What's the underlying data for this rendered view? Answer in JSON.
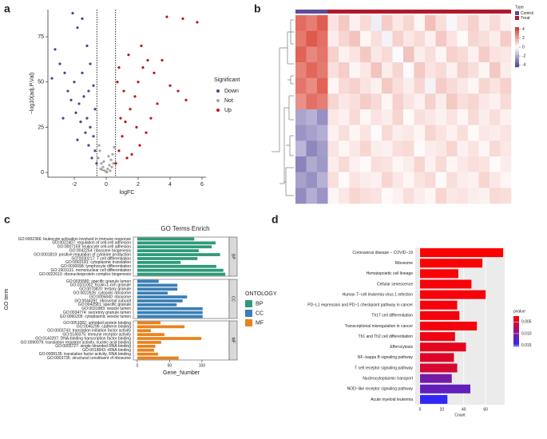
{
  "chart_data": [
    {
      "type": "scatter",
      "panel": "a",
      "xlabel": "logFC",
      "ylabel": "−log10(adj.P.Val)",
      "xlim": [
        -3.65,
        6.25
      ],
      "ylim": [
        -2.6,
        90
      ],
      "xticks": [
        -2,
        0,
        2,
        4,
        6
      ],
      "yticks": [
        0,
        25,
        50,
        75
      ],
      "vlines": [
        -0.585,
        0.585
      ],
      "legend_title": "Significant",
      "series": [
        {
          "name": "Down",
          "color": "#54408c",
          "x": [
            -3.2,
            -2.9,
            -2.6,
            -2.1,
            -1.8,
            -1.5,
            -2.4,
            -2.0,
            -1.7,
            -1.4,
            -1.2,
            -1.0,
            -0.8,
            -0.7,
            -0.9,
            -1.1,
            -1.3,
            -1.6,
            -1.9,
            -2.2,
            -0.6,
            -1.0,
            -1.2,
            -0.8,
            -1.5,
            -2.7,
            -3.4,
            -0.7,
            -1.8,
            -1.1
          ],
          "y": [
            68,
            60,
            55,
            88,
            80,
            85,
            45,
            50,
            38,
            42,
            30,
            25,
            20,
            12,
            8,
            15,
            22,
            28,
            33,
            40,
            5,
            60,
            70,
            48,
            55,
            30,
            52,
            35,
            18,
            45
          ]
        },
        {
          "name": "Not",
          "color": "#a6a6a6",
          "x": [
            -0.5,
            -0.4,
            -0.3,
            -0.2,
            -0.1,
            0,
            0.1,
            0.2,
            0.3,
            0.4,
            0.5,
            -0.45,
            0.05,
            -0.25,
            0.35,
            -0.15,
            0.15,
            0.45,
            -0.35,
            0.25
          ],
          "y": [
            8,
            12,
            5,
            3,
            1,
            0.5,
            2,
            4,
            7,
            10,
            14,
            15,
            0.2,
            1.5,
            3,
            6,
            9,
            5,
            2,
            1
          ]
        },
        {
          "name": "Up",
          "color": "#c0141a",
          "x": [
            0.6,
            0.8,
            1.0,
            1.2,
            1.5,
            1.8,
            2.0,
            2.3,
            2.6,
            3.0,
            3.5,
            4.0,
            4.5,
            5.0,
            3.8,
            4.8,
            5.7,
            3.2,
            2.8,
            2.5,
            2.1,
            1.6,
            1.3,
            0.9,
            1.1,
            0.7,
            1.4,
            2.2,
            0.8,
            1.9
          ],
          "y": [
            5,
            12,
            20,
            28,
            35,
            42,
            50,
            58,
            62,
            55,
            62,
            48,
            45,
            40,
            86,
            85,
            83,
            38,
            30,
            22,
            15,
            10,
            8,
            30,
            45,
            50,
            65,
            70,
            58,
            25
          ]
        }
      ]
    },
    {
      "type": "heatmap",
      "panel": "b",
      "legend_title": "Type",
      "groups": [
        {
          "name": "Control",
          "color": "#5e4b9c",
          "count": 3
        },
        {
          "name": "Treat",
          "color": "#b2182b",
          "count": 17
        }
      ],
      "zlim": [
        -4.5,
        4.5
      ],
      "zticks": [
        4,
        2,
        0,
        -2,
        -4
      ],
      "low_color": "#4b3f96",
      "mid_color": "#ffffff",
      "high_color": "#d7301f",
      "matrix": [
        [
          3.2,
          2.8,
          3.5,
          0.6,
          1.2,
          0.3,
          0.8,
          -0.4,
          1.1,
          0.5,
          0.9,
          0.2,
          1.4,
          0.7,
          -0.2,
          0.6,
          1.0,
          0.4,
          0.8,
          0.3
        ],
        [
          2.9,
          3.6,
          3.1,
          0.4,
          0.9,
          1.3,
          0.2,
          0.7,
          -0.3,
          1.0,
          0.5,
          0.8,
          0.3,
          1.2,
          0.6,
          0.1,
          0.9,
          0.7,
          0.4,
          1.1
        ],
        [
          3.4,
          2.6,
          3.0,
          1.0,
          0.3,
          0.6,
          1.2,
          0.5,
          0.8,
          -0.1,
          1.3,
          0.4,
          0.7,
          0.2,
          1.0,
          0.8,
          0.3,
          1.1,
          0.6,
          0.5
        ],
        [
          2.7,
          3.3,
          2.9,
          0.7,
          1.1,
          0.2,
          0.5,
          1.3,
          0.4,
          0.9,
          0.1,
          1.2,
          0.6,
          0.8,
          0.3,
          1.0,
          0.7,
          0.2,
          1.2,
          0.4
        ],
        [
          3.0,
          2.5,
          3.4,
          0.2,
          0.8,
          1.0,
          0.6,
          0.3,
          1.2,
          0.7,
          0.4,
          0.9,
          -0.3,
          1.1,
          0.8,
          0.5,
          0.2,
          0.9,
          0.6,
          1.0
        ],
        [
          2.4,
          3.1,
          2.8,
          0.9,
          0.5,
          0.7,
          1.1,
          0.8,
          0.2,
          1.0,
          0.6,
          0.3,
          1.0,
          0.4,
          1.2,
          0.7,
          0.9,
          0.5,
          0.3,
          0.8
        ],
        [
          -2.1,
          -1.8,
          -2.6,
          0.5,
          0.3,
          0.8,
          0.2,
          0.6,
          0.4,
          0.9,
          0.1,
          0.7,
          0.5,
          0.3,
          0.6,
          0.2,
          0.8,
          0.4,
          0.7,
          0.3
        ],
        [
          -2.5,
          -2.2,
          -1.9,
          0.3,
          0.7,
          0.2,
          0.6,
          0.1,
          0.8,
          0.4,
          0.5,
          0.2,
          0.9,
          0.6,
          0.3,
          0.7,
          0.1,
          0.5,
          0.4,
          0.6
        ],
        [
          -1.7,
          -2.8,
          -2.3,
          0.6,
          0.2,
          0.5,
          0.9,
          0.4,
          0.3,
          0.7,
          0.8,
          0.1,
          0.4,
          0.5,
          0.9,
          0.3,
          0.6,
          0.2,
          0.8,
          0.5
        ],
        [
          -2.9,
          -2.0,
          -2.4,
          0.4,
          0.8,
          0.3,
          0.1,
          0.7,
          0.6,
          0.2,
          0.4,
          0.9,
          0.3,
          0.8,
          0.2,
          0.5,
          0.7,
          0.6,
          0.1,
          0.4
        ],
        [
          -2.2,
          -2.6,
          -1.8,
          0.7,
          0.1,
          0.6,
          0.4,
          0.3,
          0.9,
          0.5,
          0.2,
          0.6,
          0.8,
          0.1,
          0.7,
          0.4,
          0.3,
          0.9,
          0.5,
          0.2
        ],
        [
          -2.7,
          -1.9,
          -2.5,
          0.2,
          0.5,
          0.9,
          0.7,
          0.6,
          0.1,
          0.3,
          0.7,
          0.4,
          0.2,
          0.9,
          0.5,
          0.6,
          0.4,
          0.3,
          0.8,
          0.7
        ]
      ]
    },
    {
      "type": "facet_bar",
      "panel": "c",
      "title": "GO Terms Enrich",
      "xlabel": "Gene_Number",
      "ylabel": "GO term",
      "legend_title": "ONTOLOGY",
      "xlim": [
        -6,
        142
      ],
      "xticks": [
        0,
        50,
        100
      ],
      "facets": [
        {
          "name": "BP",
          "color": "#2e9a7a",
          "categories": [
            "GO:0002366: leukocyte activation involved in immune response",
            "GO:0022407: regulation of cell-cell adhesion",
            "GO:0007159: leukocyte cell-cell adhesion",
            "GO:0042254: ribosome biogenesis",
            "GO:0001819: positive regulation of cytokine production",
            "GO:0030217: T cell differentiation",
            "GO:0002181: cytoplasmic translation",
            "GO:0030098: lymphocyte differentiation",
            "GO:1903131: mononuclear cell differentiation",
            "GO:0022613: ribonucleoprotein complex biogenesis"
          ],
          "values": [
            88,
            121,
            115,
            95,
            128,
            93,
            67,
            122,
            133,
            136
          ]
        },
        {
          "name": "CC",
          "color": "#3a7fb5",
          "categories": [
            "GO:0035580: specific granule lumen",
            "GO:0101002: ficolin-1-rich granule",
            "GO:0070820: tertiary granule",
            "GO:0022626: cytosolic ribosome",
            "GO:0005840: ribosome",
            "GO:0044391: ribosomal subunit",
            "GO:0042581: specific granule",
            "GO:0031983: vesicle lumen",
            "GO:0034774: secretory granule lumen",
            "GO:0060205: cytoplasmic vesicle lumen"
          ],
          "values": [
            33,
            62,
            62,
            47,
            77,
            70,
            61,
            101,
            101,
            101
          ]
        },
        {
          "name": "MF",
          "color": "#e8831f",
          "categories": [
            "GO:0051082: unfolded protein binding",
            "GO:0045296: cadherin binding",
            "GO:0003743: translation initiation factor activity",
            "GO:0140375: immune receptor activity",
            "GO:0140297: DNA-binding transcription factor binding",
            "GO:0090079: translation regulator activity, nucleic acid binding",
            "GO:0003727: single-stranded RNA binding",
            "GO:0019843: rRNA binding",
            "GO:0008135: translation factor activity, RNA binding",
            "GO:0003735: structural constituent of ribosome"
          ],
          "values": [
            36,
            73,
            21,
            42,
            99,
            37,
            28,
            26,
            32,
            64
          ]
        }
      ]
    },
    {
      "type": "gradient_bar",
      "panel": "d",
      "xlabel": "Count",
      "xlim": [
        -4.4,
        77.4
      ],
      "xticks": [
        0,
        20,
        40,
        60
      ],
      "legend_title": "pvalue",
      "clim": [
        0.0025,
        0.0155
      ],
      "cticks": [
        0.005,
        {
          "value": 0.01,
          "label": "0.010"
        },
        0.015
      ],
      "low_color": "#ff0000",
      "high_color": "#2a2aff",
      "categories": [
        "Coronavirus disease − COVID−19",
        "Ribosome",
        "Hematopoietic cell lineage",
        "Cellular senescence",
        "Human T−cell leukemia virus 1 infection",
        "PD−L1 expression and PD−1 checkpoint pathway in cancer",
        "Th17 cell differentiation",
        "Transcriptional misregulation in cancer",
        "Th1 and Th2 cell differentiation",
        "Efferocytosis",
        "NF−kappa B signaling pathway",
        "T cell receptor signaling pathway",
        "Nucleocytoplasmic transport",
        "NOD−like receptor signaling pathway",
        "Acute myeloid leukemia"
      ],
      "values": [
        76,
        57,
        35,
        47,
        60,
        34,
        36,
        52,
        32,
        42,
        31,
        34,
        29,
        46,
        25
      ],
      "pvalues": [
        0.0026,
        0.0027,
        0.0028,
        0.0029,
        0.003,
        0.003,
        0.0031,
        0.0032,
        0.0034,
        0.004,
        0.0045,
        0.005,
        0.011,
        0.012,
        0.015
      ]
    }
  ]
}
